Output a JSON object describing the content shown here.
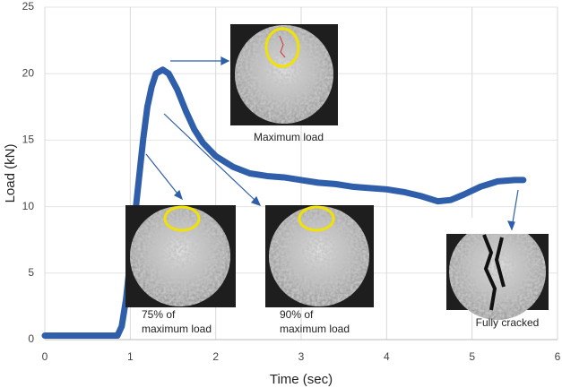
{
  "chart_data": {
    "type": "line",
    "x_label": "Time (sec)",
    "y_label": "Load (kN)",
    "xlim": [
      0,
      6
    ],
    "xticks": [
      0,
      1,
      2,
      3,
      4,
      5,
      6
    ],
    "ylim": [
      0,
      25
    ],
    "yticks": [
      0,
      5,
      10,
      15,
      20,
      25
    ],
    "grid": true,
    "series": [
      {
        "color": "#2f5faa",
        "x": [
          0,
          0.5,
          0.85,
          0.9,
          0.95,
          1.0,
          1.05,
          1.1,
          1.15,
          1.2,
          1.25,
          1.3,
          1.38,
          1.45,
          1.55,
          1.65,
          1.75,
          1.85,
          2.0,
          2.2,
          2.4,
          2.6,
          2.8,
          3.0,
          3.2,
          3.4,
          3.6,
          3.8,
          4.0,
          4.2,
          4.4,
          4.6,
          4.75,
          4.9,
          5.1,
          5.3,
          5.5,
          5.6
        ],
        "values": [
          0.3,
          0.3,
          0.3,
          1,
          3,
          6,
          9,
          12,
          15,
          17.5,
          19,
          20,
          20.3,
          20,
          18.8,
          17.2,
          15.8,
          14.8,
          13.8,
          13,
          12.5,
          12.3,
          12.2,
          12.0,
          11.8,
          11.7,
          11.5,
          11.4,
          11.3,
          11.1,
          10.8,
          10.4,
          10.5,
          10.9,
          11.5,
          11.9,
          12.0,
          12.0
        ]
      }
    ],
    "annotations": [
      {
        "lines": [
          "Maximum load"
        ]
      },
      {
        "lines": [
          "75% of",
          "maximum load"
        ]
      },
      {
        "lines": [
          "90% of",
          "maximum load"
        ]
      },
      {
        "lines": [
          "Fully cracked"
        ]
      }
    ]
  }
}
